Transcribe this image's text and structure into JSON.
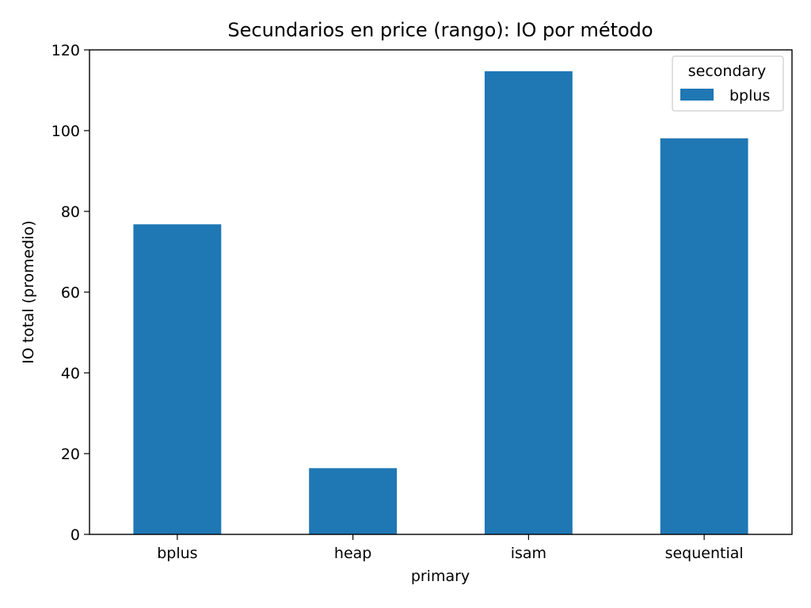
{
  "chart_data": {
    "type": "bar",
    "title": "Secundarios en price (rango): IO por método",
    "xlabel": "primary",
    "ylabel": "IO total (promedio)",
    "categories": [
      "bplus",
      "heap",
      "isam",
      "sequential"
    ],
    "series": [
      {
        "name": "bplus",
        "values": [
          76.8,
          16.4,
          114.7,
          98.1
        ],
        "color": "#1f77b4"
      }
    ],
    "ylim": [
      0,
      120
    ],
    "yticks": [
      0,
      20,
      40,
      60,
      80,
      100,
      120
    ],
    "grid": false,
    "legend": {
      "title": "secondary",
      "placement": "top-right"
    }
  }
}
